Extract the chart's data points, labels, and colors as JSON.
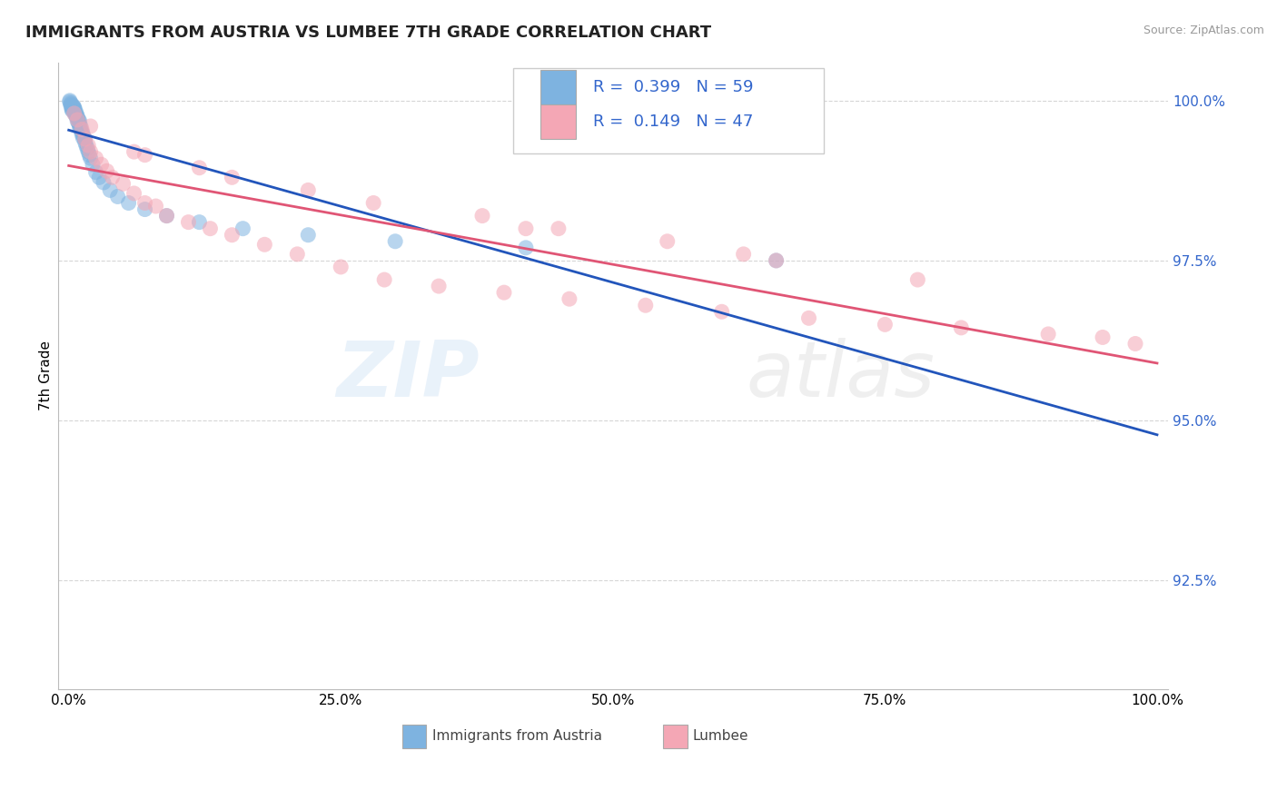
{
  "title": "IMMIGRANTS FROM AUSTRIA VS LUMBEE 7TH GRADE CORRELATION CHART",
  "source": "Source: ZipAtlas.com",
  "ylabel": "7th Grade",
  "y_tick_labels": [
    "92.5%",
    "95.0%",
    "97.5%",
    "100.0%"
  ],
  "y_tick_values": [
    0.925,
    0.95,
    0.975,
    1.0
  ],
  "x_tick_labels": [
    "0.0%",
    "25.0%",
    "50.0%",
    "75.0%",
    "100.0%"
  ],
  "x_tick_values": [
    0.0,
    0.25,
    0.5,
    0.75,
    1.0
  ],
  "blue_label": "Immigrants from Austria",
  "pink_label": "Lumbee",
  "blue_r": "0.399",
  "blue_n": "59",
  "pink_r": "0.149",
  "pink_n": "47",
  "blue_color": "#7EB3E0",
  "pink_color": "#F4A7B5",
  "blue_line_color": "#2255BB",
  "pink_line_color": "#E05575",
  "blue_tick_color": "#3366CC",
  "watermark_zip": "ZIP",
  "watermark_atlas": "atlas",
  "blue_points_x": [
    0.001,
    0.001,
    0.002,
    0.002,
    0.002,
    0.003,
    0.003,
    0.003,
    0.003,
    0.004,
    0.004,
    0.004,
    0.005,
    0.005,
    0.005,
    0.005,
    0.006,
    0.006,
    0.006,
    0.007,
    0.007,
    0.007,
    0.008,
    0.008,
    0.008,
    0.009,
    0.009,
    0.01,
    0.01,
    0.01,
    0.011,
    0.011,
    0.012,
    0.012,
    0.013,
    0.013,
    0.014,
    0.015,
    0.015,
    0.016,
    0.017,
    0.018,
    0.019,
    0.02,
    0.022,
    0.025,
    0.028,
    0.032,
    0.038,
    0.045,
    0.055,
    0.07,
    0.09,
    0.12,
    0.16,
    0.22,
    0.3,
    0.42,
    0.65
  ],
  "blue_points_y": [
    1.0,
    0.9998,
    0.9996,
    0.9994,
    0.9992,
    0.999,
    0.9988,
    0.9986,
    0.9985,
    0.9992,
    0.999,
    0.9988,
    0.999,
    0.9988,
    0.9985,
    0.9982,
    0.9985,
    0.998,
    0.9978,
    0.998,
    0.9978,
    0.9975,
    0.9975,
    0.9972,
    0.9968,
    0.997,
    0.9965,
    0.9968,
    0.9962,
    0.9958,
    0.996,
    0.9955,
    0.9952,
    0.9948,
    0.9948,
    0.9942,
    0.9942,
    0.994,
    0.9935,
    0.993,
    0.9925,
    0.992,
    0.9915,
    0.991,
    0.99,
    0.9888,
    0.988,
    0.9872,
    0.986,
    0.985,
    0.984,
    0.983,
    0.982,
    0.981,
    0.98,
    0.979,
    0.978,
    0.977,
    0.975
  ],
  "pink_points_x": [
    0.005,
    0.008,
    0.012,
    0.015,
    0.018,
    0.02,
    0.025,
    0.03,
    0.035,
    0.04,
    0.05,
    0.06,
    0.07,
    0.08,
    0.09,
    0.11,
    0.13,
    0.15,
    0.18,
    0.21,
    0.25,
    0.29,
    0.34,
    0.4,
    0.46,
    0.53,
    0.6,
    0.68,
    0.75,
    0.82,
    0.9,
    0.95,
    0.98,
    0.02,
    0.06,
    0.15,
    0.28,
    0.45,
    0.62,
    0.78,
    0.55,
    0.38,
    0.22,
    0.12,
    0.07,
    0.42,
    0.65
  ],
  "pink_points_y": [
    0.998,
    0.997,
    0.9955,
    0.994,
    0.993,
    0.992,
    0.991,
    0.99,
    0.989,
    0.988,
    0.987,
    0.9855,
    0.984,
    0.9835,
    0.982,
    0.981,
    0.98,
    0.979,
    0.9775,
    0.976,
    0.974,
    0.972,
    0.971,
    0.97,
    0.969,
    0.968,
    0.967,
    0.966,
    0.965,
    0.9645,
    0.9635,
    0.963,
    0.962,
    0.996,
    0.992,
    0.988,
    0.984,
    0.98,
    0.976,
    0.972,
    0.978,
    0.982,
    0.986,
    0.9895,
    0.9915,
    0.98,
    0.975
  ],
  "ylim_min": 0.908,
  "ylim_max": 1.006,
  "xlim_min": -0.01,
  "xlim_max": 1.01
}
